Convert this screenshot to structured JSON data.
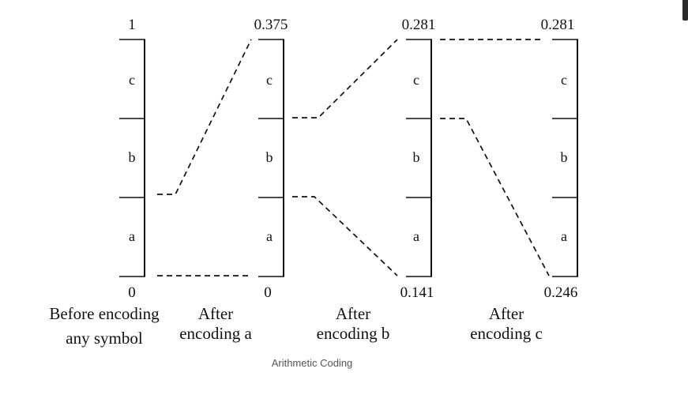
{
  "caption": "Arithmetic Coding",
  "columns": [
    {
      "top_value": "1",
      "bottom_value": "0",
      "segment_labels": [
        "c",
        "b",
        "a"
      ],
      "caption_lines": [
        "Before encoding",
        "any symbol"
      ]
    },
    {
      "top_value": "0.375",
      "bottom_value": "0",
      "segment_labels": [
        "c",
        "b",
        "a"
      ],
      "caption_lines": [
        "After",
        "encoding a"
      ]
    },
    {
      "top_value": "0.281",
      "bottom_value": "0.141",
      "segment_labels": [
        "c",
        "b",
        "a"
      ],
      "caption_lines": [
        "After",
        "encoding b"
      ]
    },
    {
      "top_value": "0.281",
      "bottom_value": "0.246",
      "segment_labels": [
        "c",
        "b",
        "a"
      ],
      "caption_lines": [
        "After",
        "encoding c"
      ]
    }
  ]
}
